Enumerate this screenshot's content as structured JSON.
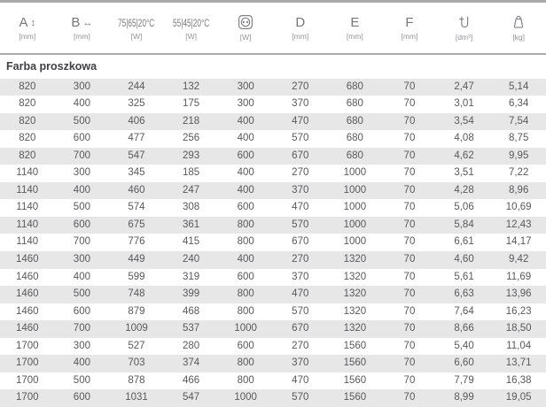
{
  "table": {
    "section_title": "Farba proszkowa",
    "columns": [
      {
        "label": "A",
        "arrow": "↕",
        "unit": "[mm]"
      },
      {
        "label": "B",
        "arrow": "↔",
        "unit": "[mm]"
      },
      {
        "label": "75|65|20°C",
        "unit": "[W]"
      },
      {
        "label": "55|45|20°C",
        "unit": "[W]"
      },
      {
        "label": "",
        "icon": "electric-socket-icon",
        "unit": "[W]"
      },
      {
        "label": "D",
        "unit": "[mm]"
      },
      {
        "label": "E",
        "unit": "[mm]"
      },
      {
        "label": "F",
        "unit": "[mm]"
      },
      {
        "label": "",
        "icon": "water-capacity-icon",
        "unit": "[dm³]"
      },
      {
        "label": "",
        "icon": "weight-icon",
        "unit": "[kg]"
      }
    ],
    "rows": [
      [
        "820",
        "300",
        "244",
        "132",
        "300",
        "270",
        "680",
        "70",
        "2,47",
        "5,14"
      ],
      [
        "820",
        "400",
        "325",
        "175",
        "300",
        "370",
        "680",
        "70",
        "3,01",
        "6,34"
      ],
      [
        "820",
        "500",
        "406",
        "218",
        "400",
        "470",
        "680",
        "70",
        "3,54",
        "7,54"
      ],
      [
        "820",
        "600",
        "477",
        "256",
        "400",
        "570",
        "680",
        "70",
        "4,08",
        "8,75"
      ],
      [
        "820",
        "700",
        "547",
        "293",
        "600",
        "670",
        "680",
        "70",
        "4,62",
        "9,95"
      ],
      [
        "1140",
        "300",
        "345",
        "185",
        "400",
        "270",
        "1000",
        "70",
        "3,51",
        "7,22"
      ],
      [
        "1140",
        "400",
        "460",
        "247",
        "400",
        "370",
        "1000",
        "70",
        "4,28",
        "8,96"
      ],
      [
        "1140",
        "500",
        "574",
        "308",
        "600",
        "470",
        "1000",
        "70",
        "5,06",
        "10,69"
      ],
      [
        "1140",
        "600",
        "675",
        "361",
        "800",
        "570",
        "1000",
        "70",
        "5,84",
        "12,43"
      ],
      [
        "1140",
        "700",
        "776",
        "415",
        "800",
        "670",
        "1000",
        "70",
        "6,61",
        "14,17"
      ],
      [
        "1460",
        "300",
        "449",
        "240",
        "400",
        "270",
        "1320",
        "70",
        "4,60",
        "9,42"
      ],
      [
        "1460",
        "400",
        "599",
        "319",
        "600",
        "370",
        "1320",
        "70",
        "5,61",
        "11,69"
      ],
      [
        "1460",
        "500",
        "748",
        "399",
        "800",
        "470",
        "1320",
        "70",
        "6,63",
        "13,96"
      ],
      [
        "1460",
        "600",
        "879",
        "468",
        "800",
        "570",
        "1320",
        "70",
        "7,64",
        "16,23"
      ],
      [
        "1460",
        "700",
        "1009",
        "537",
        "1000",
        "670",
        "1320",
        "70",
        "8,66",
        "18,50"
      ],
      [
        "1700",
        "300",
        "527",
        "280",
        "600",
        "270",
        "1560",
        "70",
        "5,40",
        "11,04"
      ],
      [
        "1700",
        "400",
        "703",
        "374",
        "800",
        "370",
        "1560",
        "70",
        "6,60",
        "13,71"
      ],
      [
        "1700",
        "500",
        "878",
        "466",
        "800",
        "470",
        "1560",
        "70",
        "7,79",
        "16,38"
      ],
      [
        "1700",
        "600",
        "1031",
        "547",
        "1000",
        "570",
        "1560",
        "70",
        "8,99",
        "19,05"
      ]
    ]
  },
  "colors": {
    "stripe": "#e7e7e7",
    "rule": "#a9a9a9",
    "text": "#58595b",
    "header_text": "#77787b",
    "unit_text": "#939598"
  }
}
